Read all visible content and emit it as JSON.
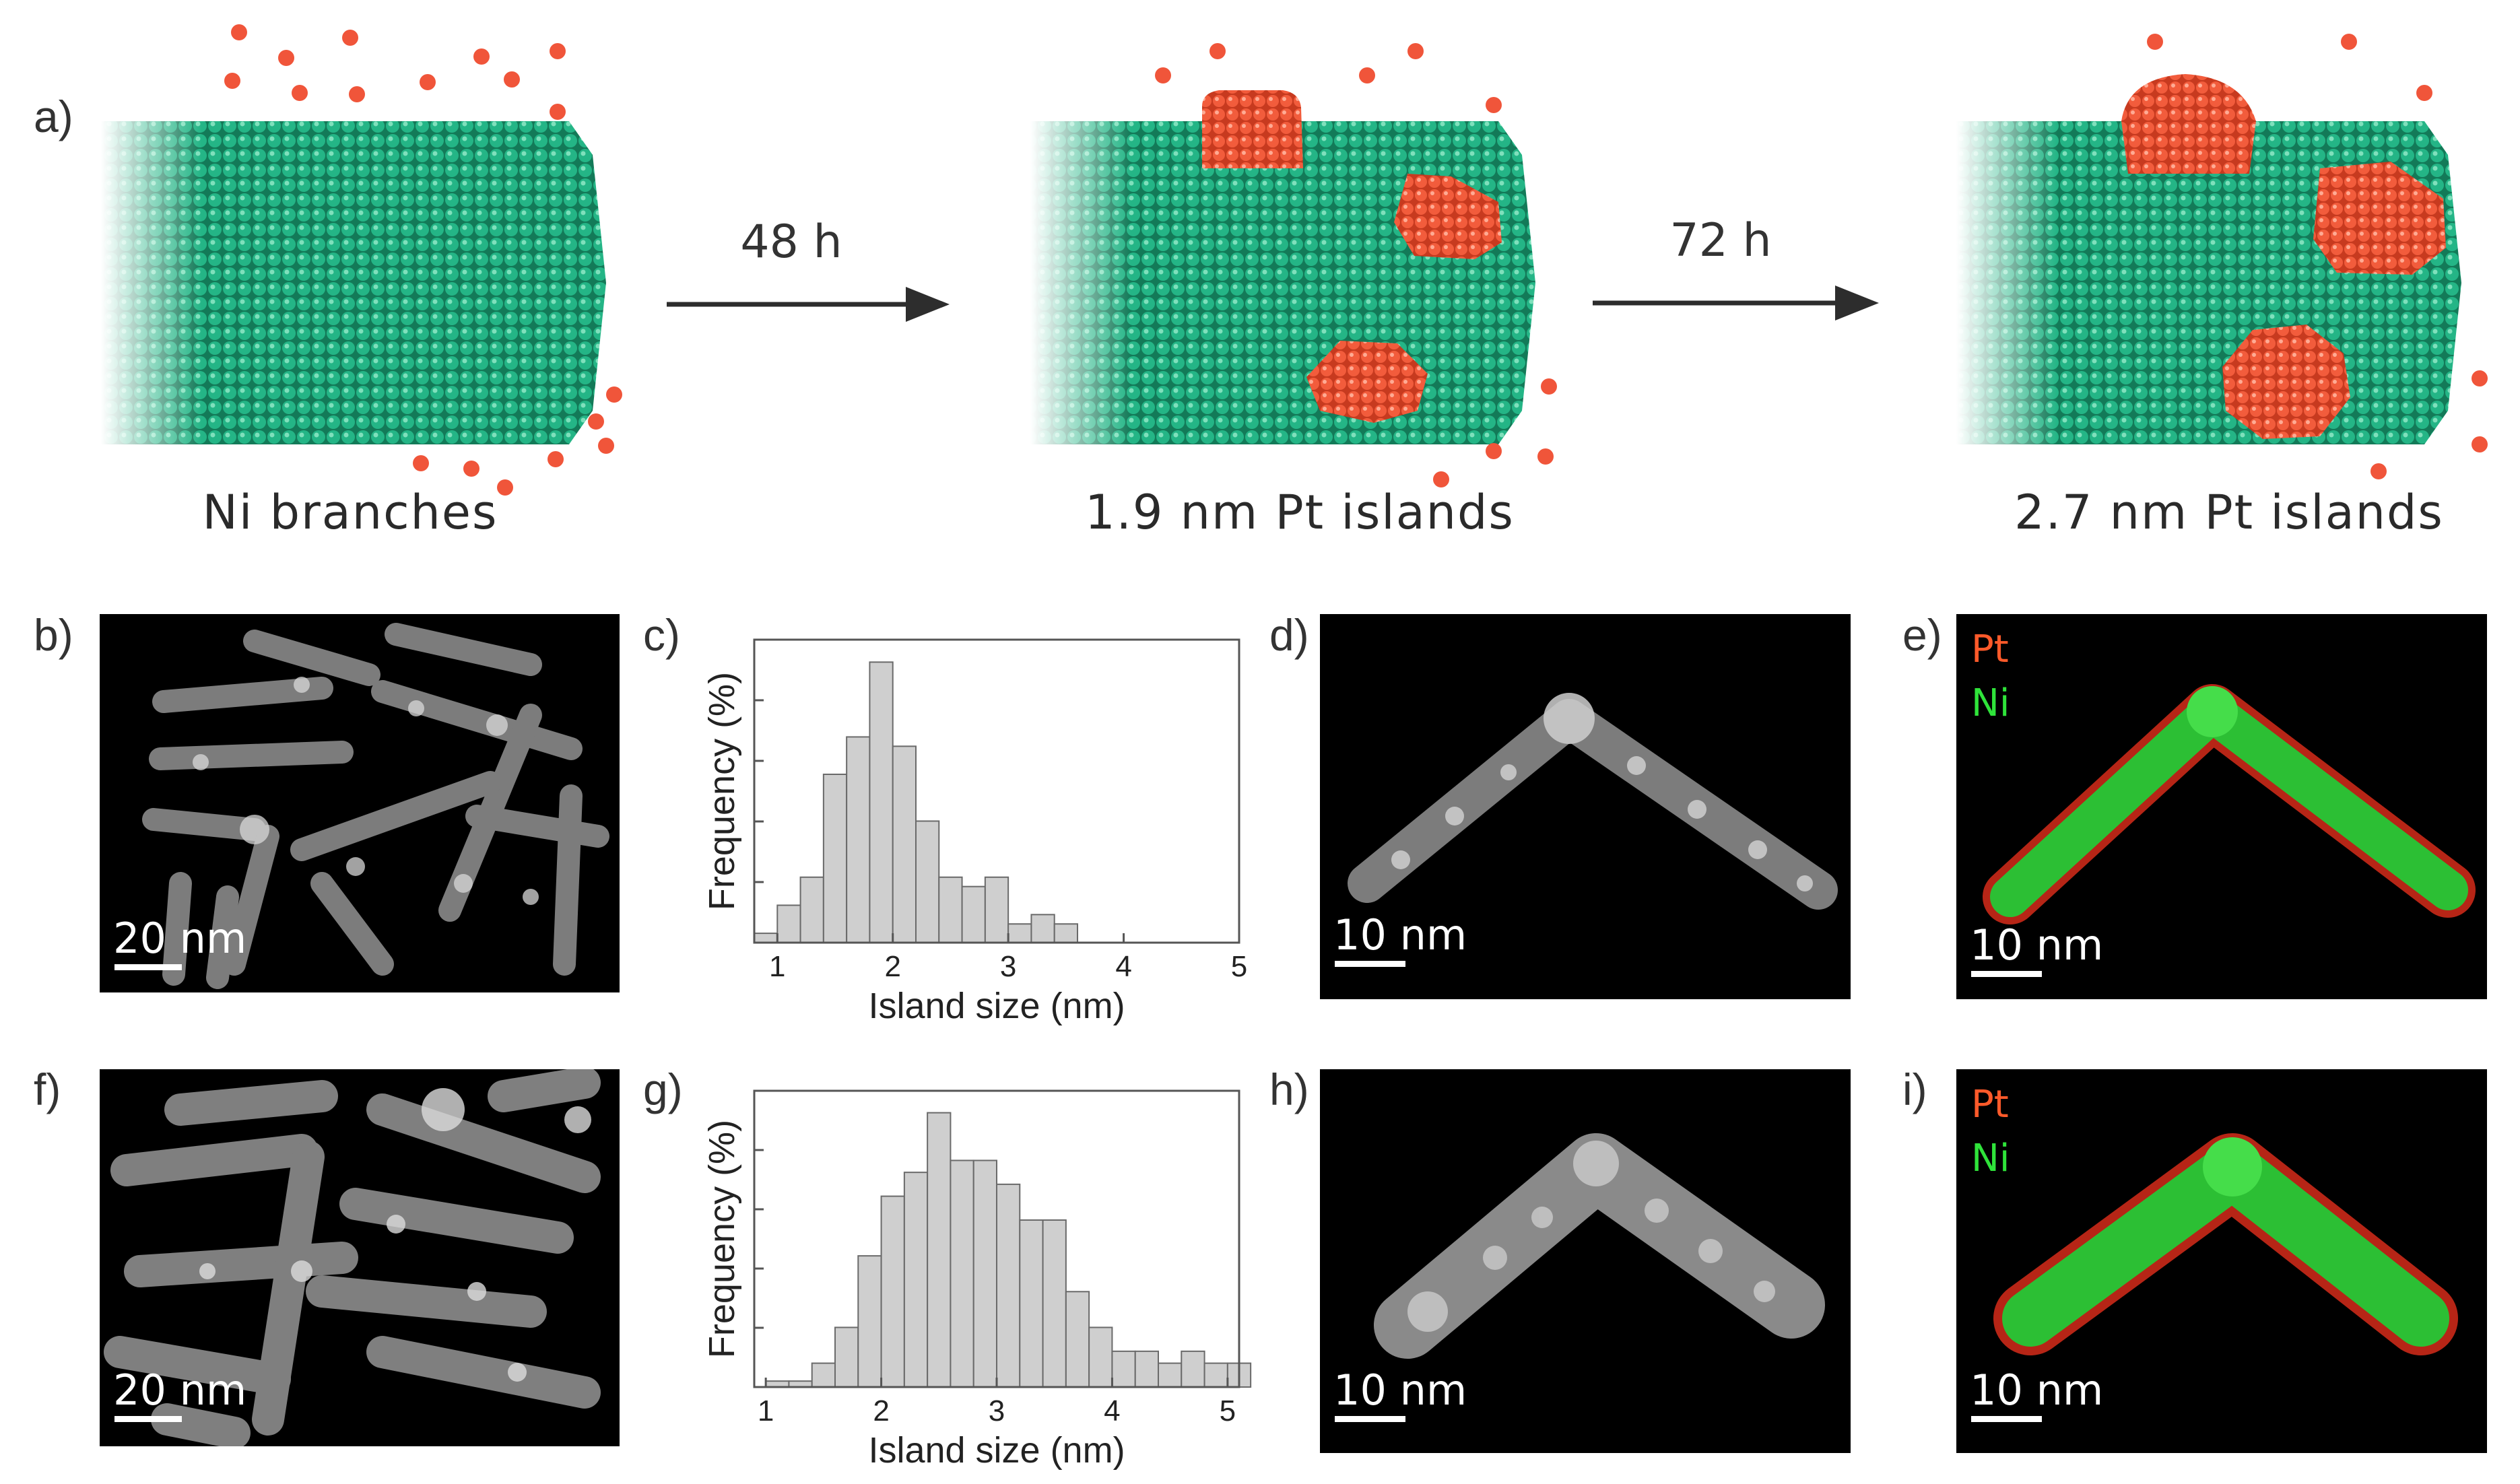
{
  "panel_a": {
    "label": "a)",
    "stage1_caption": "Ni branches",
    "arrow1_label": "48 h",
    "stage2_caption": "1.9 nm Pt islands",
    "arrow2_label": "72 h",
    "stage3_caption": "2.7 nm Pt islands",
    "colors": {
      "ni": "#1fa57a",
      "pt": "#f0553a"
    }
  },
  "row1": {
    "b": {
      "label": "b)",
      "scale": "20 nm"
    },
    "c": {
      "label": "c)"
    },
    "d": {
      "label": "d)",
      "scale": "10 nm"
    },
    "e": {
      "label": "e)",
      "scale": "10 nm",
      "legend_pt": "Pt",
      "legend_ni": "Ni"
    }
  },
  "row2": {
    "f": {
      "label": "f)",
      "scale": "20 nm"
    },
    "g": {
      "label": "g)"
    },
    "h": {
      "label": "h)",
      "scale": "10 nm"
    },
    "i": {
      "label": "i)",
      "scale": "10 nm",
      "legend_pt": "Pt",
      "legend_ni": "Ni"
    }
  },
  "chart_data": [
    {
      "type": "bar",
      "panel": "c",
      "xlabel": "Island size (nm)",
      "ylabel": "Frequency (%)",
      "xlim": [
        0.8,
        5
      ],
      "xticks": [
        "1",
        "2",
        "3",
        "4",
        "5"
      ],
      "bin_width": 0.2,
      "x": [
        0.9,
        1.1,
        1.3,
        1.5,
        1.7,
        1.9,
        2.1,
        2.3,
        2.5,
        2.7,
        2.9,
        3.1,
        3.3,
        3.5
      ],
      "values": [
        1,
        4,
        7,
        18,
        22,
        30,
        21,
        13,
        7,
        6,
        7,
        2,
        3,
        2
      ]
    },
    {
      "type": "bar",
      "panel": "g",
      "xlabel": "Island size (nm)",
      "ylabel": "Frequency (%)",
      "xlim": [
        0.9,
        5.1
      ],
      "xticks": [
        "1",
        "2",
        "3",
        "4",
        "5"
      ],
      "bin_width": 0.2,
      "x": [
        1.1,
        1.3,
        1.5,
        1.7,
        1.9,
        2.1,
        2.3,
        2.5,
        2.7,
        2.9,
        3.1,
        3.3,
        3.5,
        3.7,
        3.9,
        4.1,
        4.3,
        4.5,
        4.7,
        4.9,
        5.1
      ],
      "values": [
        0.5,
        0.5,
        2,
        5,
        11,
        16,
        18,
        23,
        19,
        19,
        17,
        14,
        14,
        8,
        5,
        3,
        3,
        2,
        3,
        2,
        2
      ]
    }
  ]
}
